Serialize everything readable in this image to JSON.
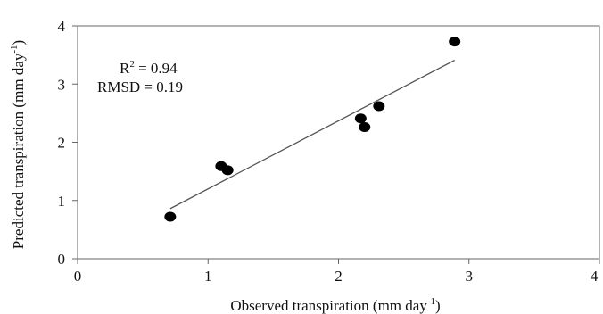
{
  "chart_data": {
    "type": "scatter",
    "title": "",
    "xlabel": "Observed transpiration (mm day",
    "xlabel_sup": "-1",
    "xlabel_end": ")",
    "ylabel": "Predicted transpiration (mm day",
    "ylabel_sup": "-1",
    "ylabel_end": ")",
    "xlim": [
      0,
      4
    ],
    "ylim": [
      0,
      4
    ],
    "xticks": [
      "0",
      "1",
      "2",
      "3",
      "4"
    ],
    "yticks": [
      "0",
      "1",
      "2",
      "3",
      "4"
    ],
    "grid": false,
    "points": [
      {
        "x": 0.71,
        "y": 0.72
      },
      {
        "x": 1.1,
        "y": 1.59
      },
      {
        "x": 1.15,
        "y": 1.52
      },
      {
        "x": 2.17,
        "y": 2.41
      },
      {
        "x": 2.2,
        "y": 2.26
      },
      {
        "x": 2.31,
        "y": 2.62
      },
      {
        "x": 2.89,
        "y": 3.73
      }
    ],
    "trendline": {
      "x1": 0.71,
      "y1": 0.86,
      "x2": 2.89,
      "y2": 3.41
    },
    "annotations": {
      "r2_prefix": "R",
      "r2_sup": "2",
      "r2_value": " = 0.94",
      "rmsd": "RMSD = 0.19"
    }
  }
}
